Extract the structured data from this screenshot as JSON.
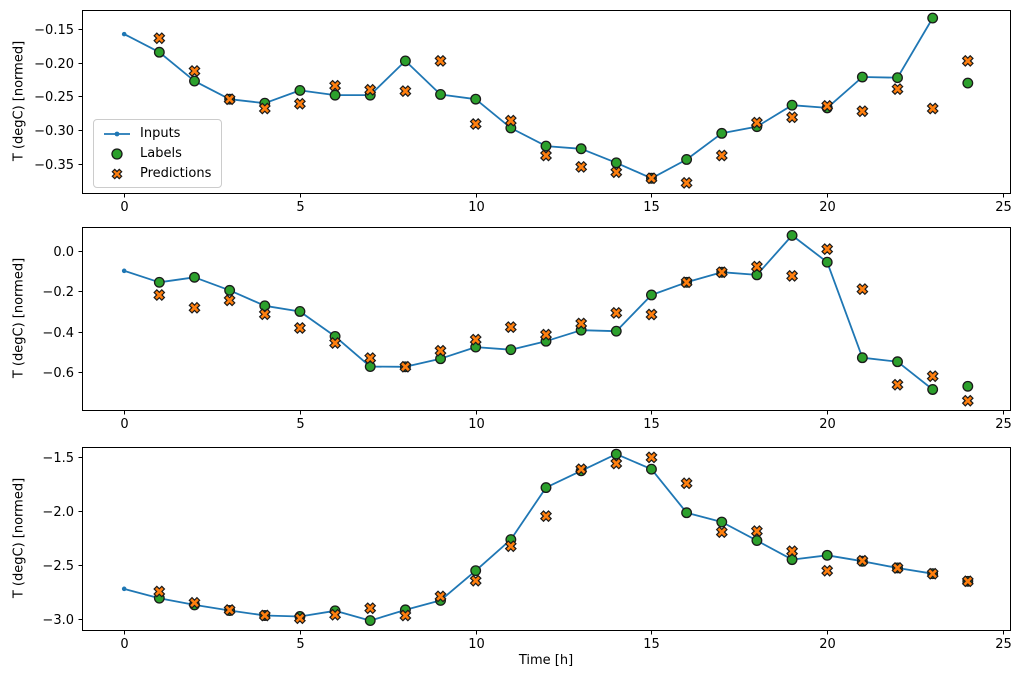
{
  "figure": {
    "background": "#ffffff",
    "text_color": "#000000"
  },
  "colors": {
    "inputs": "#1f77b4",
    "labels": "#2ca02c",
    "predictions": "#ff7f0e",
    "marker_edge": "#1a1a1a",
    "spine": "#000000",
    "legend_border": "#cccccc"
  },
  "legend": {
    "items": [
      {
        "label": "Inputs"
      },
      {
        "label": "Labels"
      },
      {
        "label": "Predictions"
      }
    ]
  },
  "chart_data": [
    {
      "type": "line",
      "title": "",
      "ylabel": "T (degC) [normed]",
      "xlabel": "",
      "xlim": [
        -1.2,
        25.2
      ],
      "ylim": [
        -0.394,
        -0.121
      ],
      "xticks": [
        0,
        5,
        10,
        15,
        20,
        25
      ],
      "xtick_labels": [
        "0",
        "5",
        "10",
        "15",
        "20",
        "25"
      ],
      "yticks": [
        -0.15,
        -0.2,
        -0.25,
        -0.3,
        -0.35
      ],
      "ytick_labels": [
        "−0.15",
        "−0.20",
        "−0.25",
        "−0.30",
        "−0.35"
      ],
      "grid": false,
      "legend_position": "center left",
      "series": [
        {
          "name": "Inputs",
          "kind": "line",
          "marker": "dot",
          "x": [
            0,
            1,
            2,
            3,
            4,
            5,
            6,
            7,
            8,
            9,
            10,
            11,
            12,
            13,
            14,
            15,
            16,
            17,
            18,
            19,
            20,
            21,
            22,
            23
          ],
          "y": [
            -0.157,
            -0.184,
            -0.227,
            -0.254,
            -0.26,
            -0.241,
            -0.248,
            -0.248,
            -0.197,
            -0.247,
            -0.254,
            -0.297,
            -0.324,
            -0.328,
            -0.349,
            -0.372,
            -0.344,
            -0.305,
            -0.295,
            -0.263,
            -0.267,
            -0.221,
            -0.222,
            -0.133
          ]
        },
        {
          "name": "Labels",
          "kind": "scatter",
          "marker": "circle",
          "x": [
            1,
            2,
            3,
            4,
            5,
            6,
            7,
            8,
            9,
            10,
            11,
            12,
            13,
            14,
            15,
            16,
            17,
            18,
            19,
            20,
            21,
            22,
            23,
            24
          ],
          "y": [
            -0.184,
            -0.227,
            -0.254,
            -0.26,
            -0.241,
            -0.248,
            -0.248,
            -0.197,
            -0.247,
            -0.254,
            -0.297,
            -0.324,
            -0.328,
            -0.349,
            -0.372,
            -0.344,
            -0.305,
            -0.295,
            -0.263,
            -0.267,
            -0.221,
            -0.222,
            -0.133,
            -0.23
          ]
        },
        {
          "name": "Predictions",
          "kind": "scatter",
          "marker": "X",
          "x": [
            1,
            2,
            3,
            4,
            5,
            6,
            7,
            8,
            9,
            10,
            11,
            12,
            13,
            14,
            15,
            16,
            17,
            18,
            19,
            20,
            21,
            22,
            23,
            24
          ],
          "y": [
            -0.163,
            -0.212,
            -0.254,
            -0.268,
            -0.261,
            -0.234,
            -0.24,
            -0.242,
            -0.197,
            -0.291,
            -0.286,
            -0.338,
            -0.355,
            -0.363,
            -0.372,
            -0.379,
            -0.338,
            -0.289,
            -0.281,
            -0.264,
            -0.272,
            -0.239,
            -0.268,
            -0.197
          ]
        }
      ]
    },
    {
      "type": "line",
      "title": "",
      "ylabel": "T (degC) [normed]",
      "xlabel": "",
      "xlim": [
        -1.2,
        25.2
      ],
      "ylim": [
        -0.79,
        0.12
      ],
      "xticks": [
        0,
        5,
        10,
        15,
        20,
        25
      ],
      "xtick_labels": [
        "0",
        "5",
        "10",
        "15",
        "20",
        "25"
      ],
      "yticks": [
        0.0,
        -0.2,
        -0.4,
        -0.6
      ],
      "ytick_labels": [
        "0.0",
        "−0.2",
        "−0.4",
        "−0.6"
      ],
      "grid": false,
      "series": [
        {
          "name": "Inputs",
          "kind": "line",
          "marker": "dot",
          "x": [
            0,
            1,
            2,
            3,
            4,
            5,
            6,
            7,
            8,
            9,
            10,
            11,
            12,
            13,
            14,
            15,
            16,
            17,
            18,
            19,
            20,
            21,
            22,
            23
          ],
          "y": [
            -0.098,
            -0.155,
            -0.13,
            -0.195,
            -0.272,
            -0.3,
            -0.424,
            -0.574,
            -0.575,
            -0.535,
            -0.477,
            -0.49,
            -0.448,
            -0.393,
            -0.398,
            -0.218,
            -0.155,
            -0.105,
            -0.118,
            0.078,
            -0.055,
            -0.53,
            -0.55,
            -0.688
          ]
        },
        {
          "name": "Labels",
          "kind": "scatter",
          "marker": "circle",
          "x": [
            1,
            2,
            3,
            4,
            5,
            6,
            7,
            8,
            9,
            10,
            11,
            12,
            13,
            14,
            15,
            16,
            17,
            18,
            19,
            20,
            21,
            22,
            23,
            24
          ],
          "y": [
            -0.155,
            -0.13,
            -0.195,
            -0.272,
            -0.3,
            -0.424,
            -0.574,
            -0.575,
            -0.535,
            -0.477,
            -0.49,
            -0.448,
            -0.393,
            -0.398,
            -0.218,
            -0.155,
            -0.105,
            -0.118,
            0.078,
            -0.055,
            -0.53,
            -0.55,
            -0.688,
            -0.672
          ]
        },
        {
          "name": "Predictions",
          "kind": "scatter",
          "marker": "X",
          "x": [
            1,
            2,
            3,
            4,
            5,
            6,
            7,
            8,
            9,
            10,
            11,
            12,
            13,
            14,
            15,
            16,
            17,
            18,
            19,
            20,
            21,
            22,
            23,
            24
          ],
          "y": [
            -0.218,
            -0.282,
            -0.245,
            -0.314,
            -0.382,
            -0.457,
            -0.532,
            -0.575,
            -0.495,
            -0.44,
            -0.378,
            -0.415,
            -0.36,
            -0.307,
            -0.315,
            -0.155,
            -0.105,
            -0.077,
            -0.123,
            0.01,
            -0.189,
            -0.664,
            -0.622,
            -0.744
          ]
        }
      ]
    },
    {
      "type": "line",
      "title": "",
      "ylabel": "T (degC) [normed]",
      "xlabel": "Time [h]",
      "xlim": [
        -1.2,
        25.2
      ],
      "ylim": [
        -3.1,
        -1.41
      ],
      "xticks": [
        0,
        5,
        10,
        15,
        20,
        25
      ],
      "xtick_labels": [
        "0",
        "5",
        "10",
        "15",
        "20",
        "25"
      ],
      "yticks": [
        -1.5,
        -2.0,
        -2.5,
        -3.0
      ],
      "ytick_labels": [
        "−1.5",
        "−2.0",
        "−2.5",
        "−3.0"
      ],
      "grid": false,
      "series": [
        {
          "name": "Inputs",
          "kind": "line",
          "marker": "dot",
          "x": [
            0,
            1,
            2,
            3,
            4,
            5,
            6,
            7,
            8,
            9,
            10,
            11,
            12,
            13,
            14,
            15,
            16,
            17,
            18,
            19,
            20,
            21,
            22,
            23
          ],
          "y": [
            -2.72,
            -2.806,
            -2.868,
            -2.92,
            -2.966,
            -2.975,
            -2.923,
            -3.013,
            -2.914,
            -2.827,
            -2.552,
            -2.265,
            -1.785,
            -1.63,
            -1.476,
            -1.615,
            -2.017,
            -2.103,
            -2.274,
            -2.45,
            -2.41,
            -2.465,
            -2.527,
            -2.58
          ]
        },
        {
          "name": "Labels",
          "kind": "scatter",
          "marker": "circle",
          "x": [
            1,
            2,
            3,
            4,
            5,
            6,
            7,
            8,
            9,
            10,
            11,
            12,
            13,
            14,
            15,
            16,
            17,
            18,
            19,
            20,
            21,
            22,
            23,
            24
          ],
          "y": [
            -2.806,
            -2.868,
            -2.92,
            -2.966,
            -2.975,
            -2.923,
            -3.013,
            -2.914,
            -2.827,
            -2.552,
            -2.265,
            -1.785,
            -1.63,
            -1.476,
            -1.615,
            -2.017,
            -2.103,
            -2.274,
            -2.45,
            -2.41,
            -2.465,
            -2.527,
            -2.58,
            -2.65
          ]
        },
        {
          "name": "Predictions",
          "kind": "scatter",
          "marker": "X",
          "x": [
            1,
            2,
            3,
            4,
            5,
            6,
            7,
            8,
            9,
            10,
            11,
            12,
            13,
            14,
            15,
            16,
            17,
            18,
            19,
            20,
            21,
            22,
            23,
            24
          ],
          "y": [
            -2.744,
            -2.849,
            -2.915,
            -2.966,
            -2.991,
            -2.96,
            -2.899,
            -2.966,
            -2.79,
            -2.645,
            -2.326,
            -2.048,
            -1.615,
            -1.562,
            -1.506,
            -1.745,
            -2.196,
            -2.187,
            -2.372,
            -2.552,
            -2.46,
            -2.527,
            -2.58,
            -2.65
          ]
        }
      ]
    }
  ]
}
